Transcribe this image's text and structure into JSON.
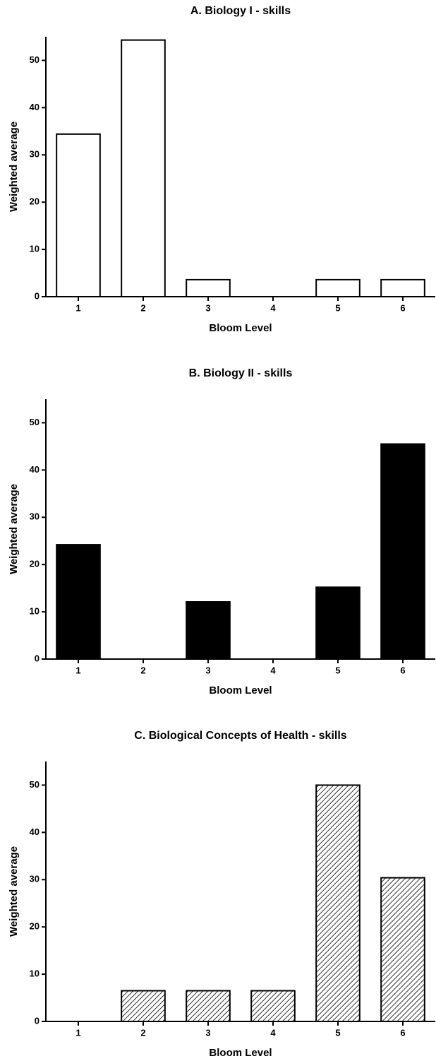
{
  "chart_data": [
    {
      "type": "bar",
      "title": "A. Biology I - skills",
      "xlabel": "Bloom Level",
      "ylabel": "Weighted average",
      "categories": [
        "1",
        "2",
        "3",
        "4",
        "5",
        "6"
      ],
      "values": [
        34.4,
        54.3,
        3.6,
        0,
        3.6,
        3.6
      ],
      "color": "#ffffff",
      "hatch": false,
      "ylim": [
        0,
        55
      ],
      "yticks": [
        0,
        10,
        20,
        30,
        40,
        50
      ]
    },
    {
      "type": "bar",
      "title": "B. Biology II - skills",
      "xlabel": "Bloom Level",
      "ylabel": "Weighted average",
      "categories": [
        "1",
        "2",
        "3",
        "4",
        "5",
        "6"
      ],
      "values": [
        24.2,
        0,
        12.1,
        0,
        15.2,
        45.5
      ],
      "color": "#000000",
      "hatch": false,
      "ylim": [
        0,
        55
      ],
      "yticks": [
        0,
        10,
        20,
        30,
        40,
        50
      ]
    },
    {
      "type": "bar",
      "title": "C. Biological Concepts of Health - skills",
      "xlabel": "Bloom Level",
      "ylabel": "Weighted average",
      "categories": [
        "1",
        "2",
        "3",
        "4",
        "5",
        "6"
      ],
      "values": [
        0,
        6.5,
        6.5,
        6.5,
        50,
        30.4
      ],
      "color": "#ffffff",
      "hatch": true,
      "ylim": [
        0,
        55
      ],
      "yticks": [
        0,
        10,
        20,
        30,
        40,
        50
      ]
    }
  ]
}
